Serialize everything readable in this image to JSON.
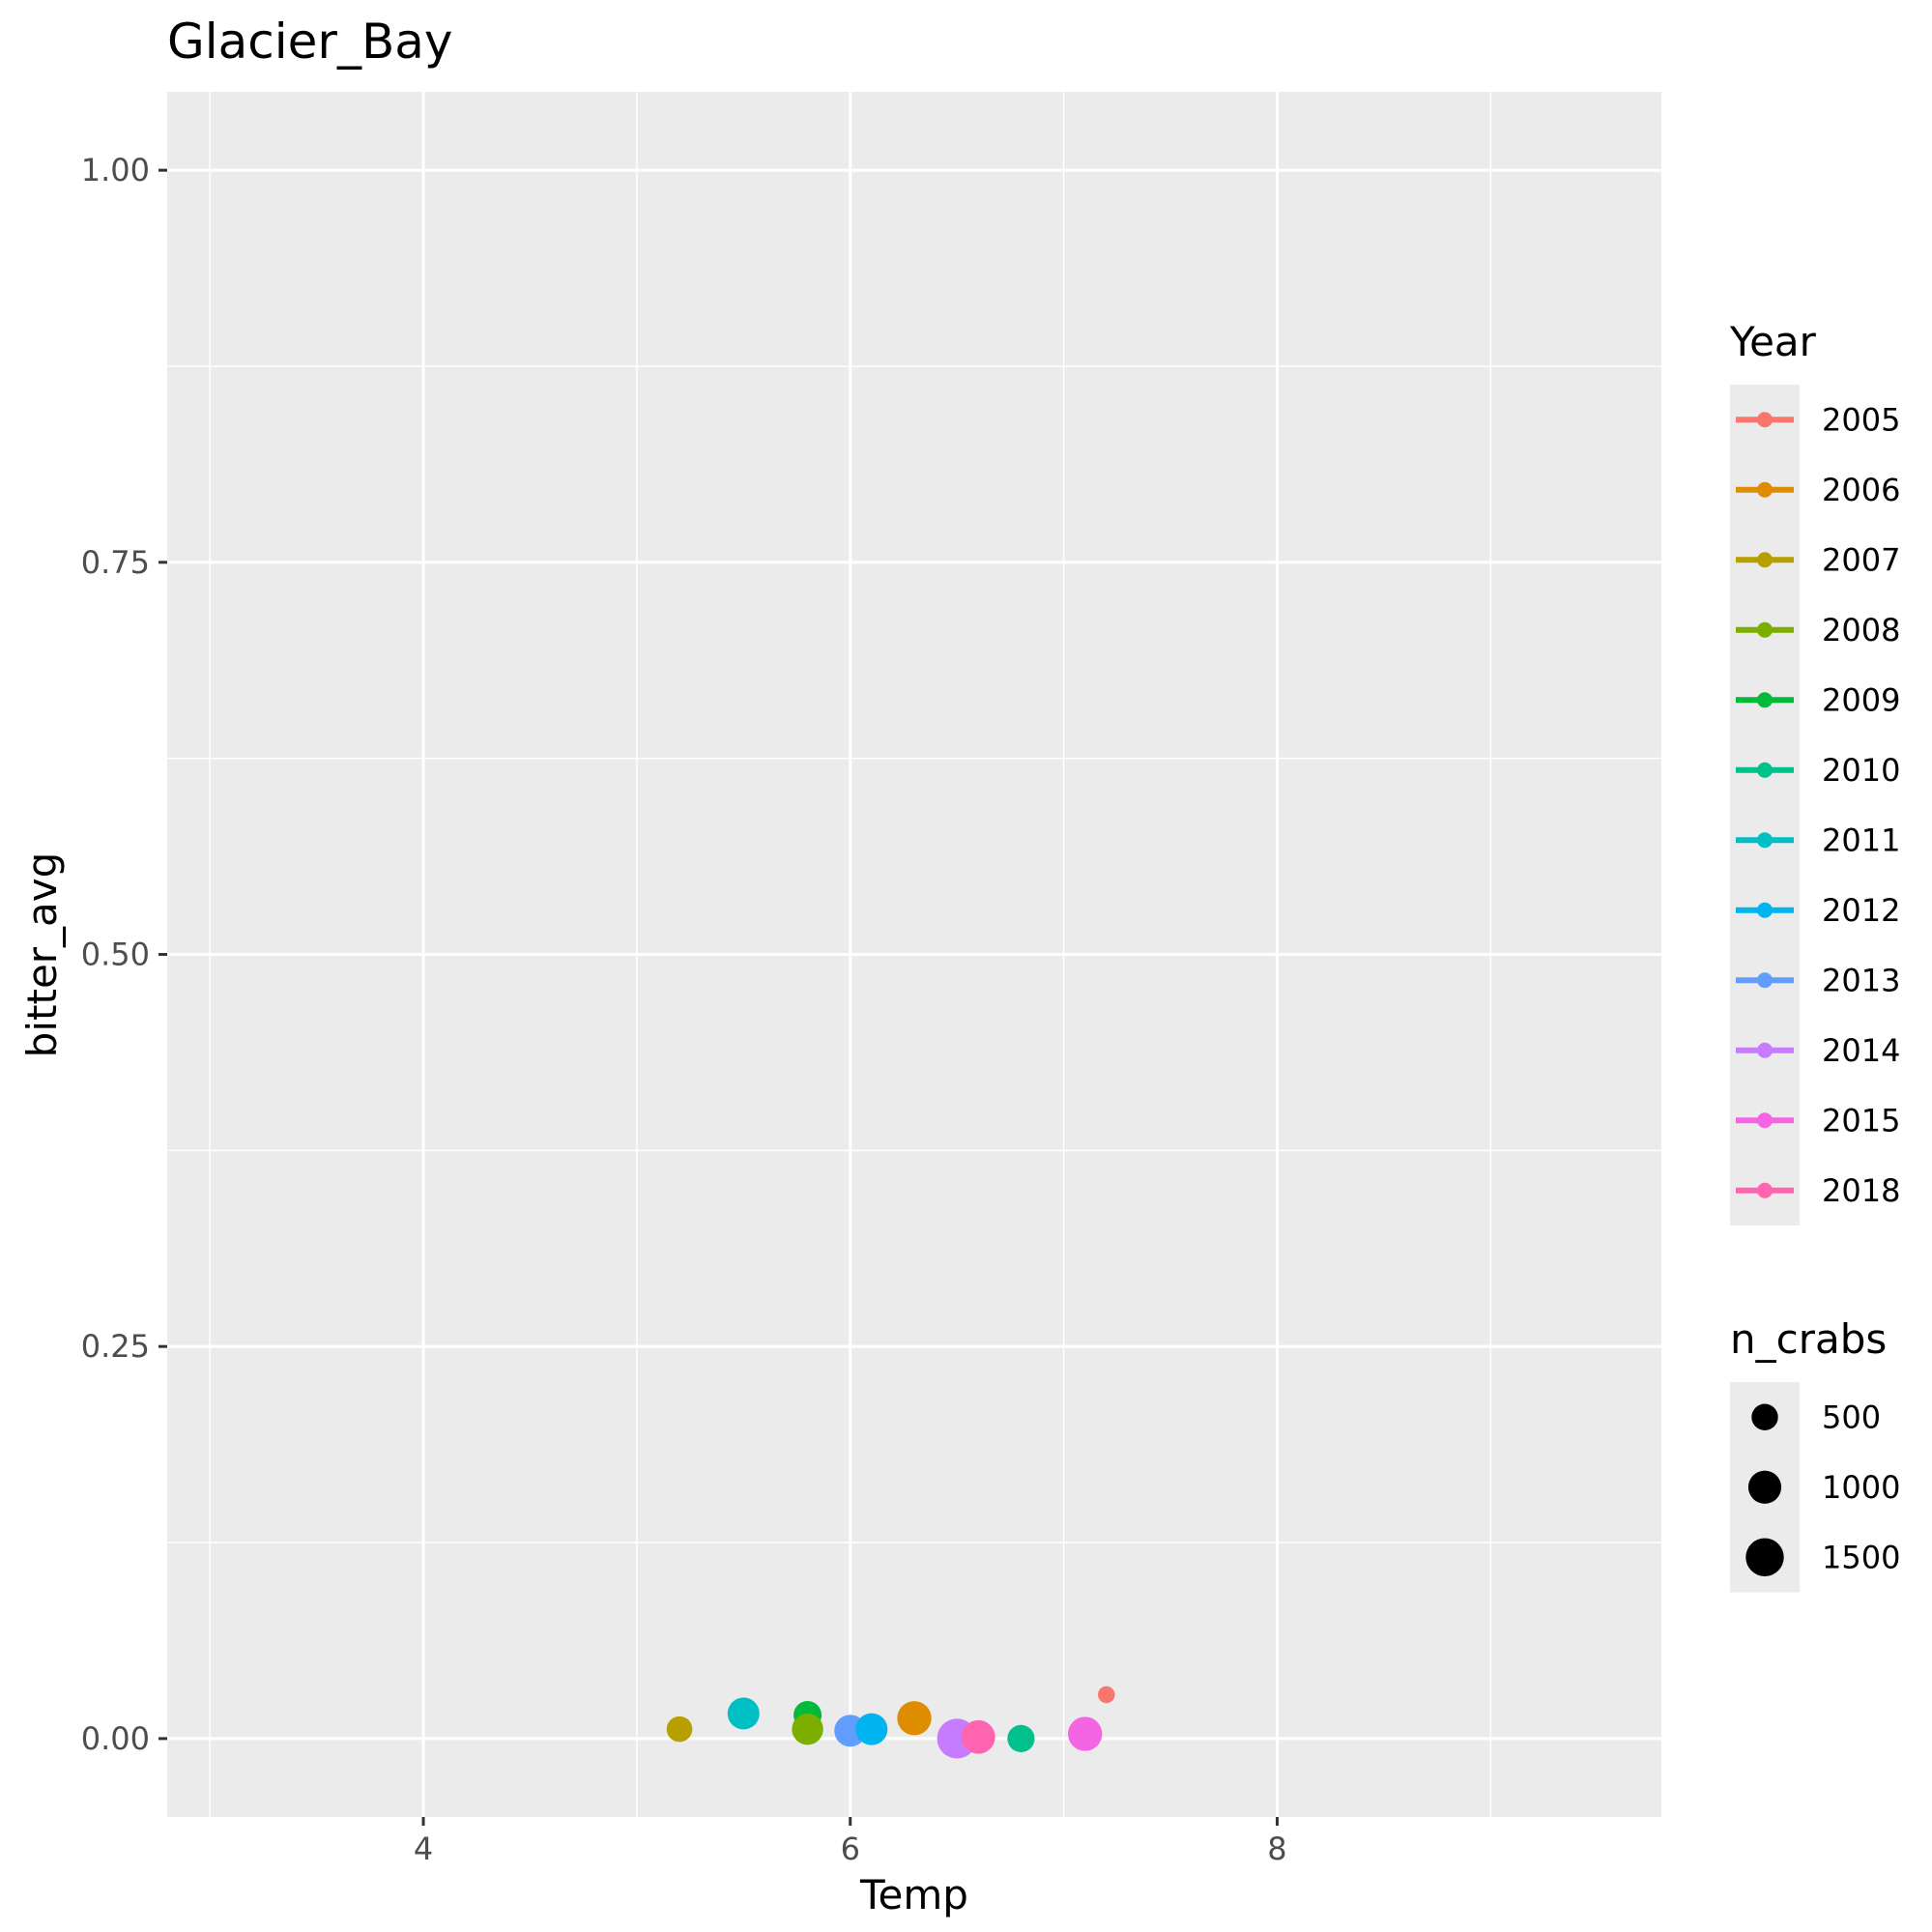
{
  "chart_data": {
    "type": "scatter",
    "title": "Glacier_Bay",
    "xlabel": "Temp",
    "ylabel": "bitter_avg",
    "xlim": [
      2.8,
      9.8
    ],
    "ylim": [
      -0.05,
      1.05
    ],
    "x_ticks": [
      4,
      6,
      8
    ],
    "y_ticks": [
      0.0,
      0.25,
      0.5,
      0.75,
      1.0
    ],
    "y_tick_labels": [
      "0.00",
      "0.25",
      "0.50",
      "0.75",
      "1.00"
    ],
    "grid": true,
    "legend_placement": "right",
    "color_legend": {
      "title": "Year",
      "entries": [
        {
          "label": "2005",
          "color": "#F8766D"
        },
        {
          "label": "2006",
          "color": "#DE8C00"
        },
        {
          "label": "2007",
          "color": "#B79F00"
        },
        {
          "label": "2008",
          "color": "#7CAE00"
        },
        {
          "label": "2009",
          "color": "#00BA38"
        },
        {
          "label": "2010",
          "color": "#00C08B"
        },
        {
          "label": "2011",
          "color": "#00BFC4"
        },
        {
          "label": "2012",
          "color": "#00B4F0"
        },
        {
          "label": "2013",
          "color": "#619CFF"
        },
        {
          "label": "2014",
          "color": "#C77CFF"
        },
        {
          "label": "2015",
          "color": "#F564E3"
        },
        {
          "label": "2018",
          "color": "#FF64B0"
        }
      ]
    },
    "size_legend": {
      "title": "n_crabs",
      "entries": [
        {
          "label": "500",
          "value": 500
        },
        {
          "label": "1000",
          "value": 1000
        },
        {
          "label": "1500",
          "value": 1500
        }
      ]
    },
    "points": [
      {
        "year": "2007",
        "x": 5.2,
        "y": 0.006,
        "n": 450
      },
      {
        "year": "2011",
        "x": 5.5,
        "y": 0.016,
        "n": 900
      },
      {
        "year": "2009",
        "x": 5.8,
        "y": 0.015,
        "n": 600
      },
      {
        "year": "2008",
        "x": 5.8,
        "y": 0.006,
        "n": 850
      },
      {
        "year": "2013",
        "x": 6.0,
        "y": 0.005,
        "n": 900
      },
      {
        "year": "2012",
        "x": 6.1,
        "y": 0.006,
        "n": 900
      },
      {
        "year": "2006",
        "x": 6.3,
        "y": 0.013,
        "n": 1100
      },
      {
        "year": "2014",
        "x": 6.5,
        "y": 0.0,
        "n": 1700
      },
      {
        "year": "2018",
        "x": 6.6,
        "y": 0.001,
        "n": 1050
      },
      {
        "year": "2010",
        "x": 6.8,
        "y": 0.0,
        "n": 550
      },
      {
        "year": "2015",
        "x": 7.1,
        "y": 0.003,
        "n": 1100
      },
      {
        "year": "2005",
        "x": 7.2,
        "y": 0.028,
        "n": 80
      }
    ]
  }
}
